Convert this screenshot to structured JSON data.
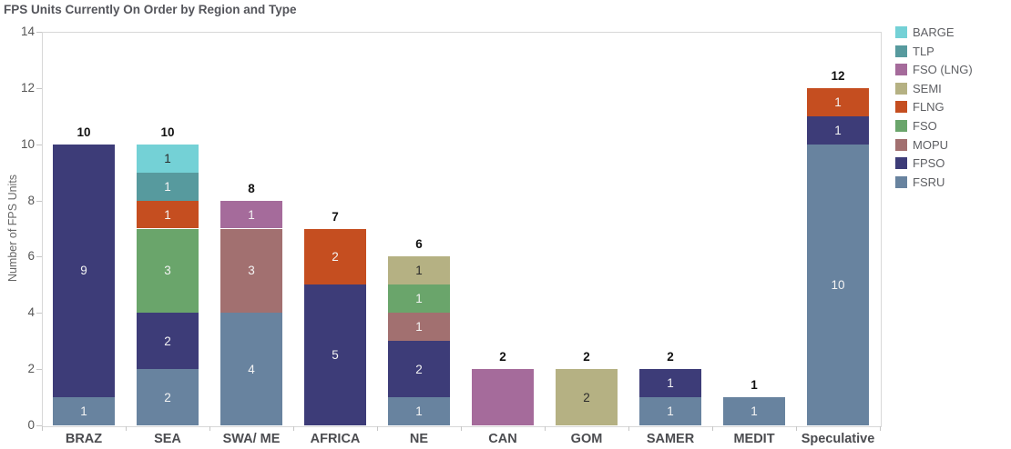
{
  "title": "FPS Units Currently On Order by Region and Type",
  "chart_data": {
    "type": "bar",
    "stacked": true,
    "title": "FPS Units Currently On Order by Region and Type",
    "xlabel": "",
    "ylabel": "Number of FPS Units",
    "ylim": [
      0,
      14
    ],
    "yticks": [
      0,
      2,
      4,
      6,
      8,
      10,
      12,
      14
    ],
    "grid": false,
    "legend_position": "right",
    "legend": [
      {
        "label": "BARGE",
        "color": "#74d1d6"
      },
      {
        "label": "TLP",
        "color": "#579a9e"
      },
      {
        "label": "FSO (LNG)",
        "color": "#a56b9b"
      },
      {
        "label": "SEMI",
        "color": "#b5b183"
      },
      {
        "label": "FLNG",
        "color": "#c54e20"
      },
      {
        "label": "FSO",
        "color": "#6aa56b"
      },
      {
        "label": "MOPU",
        "color": "#a27070"
      },
      {
        "label": "FPSO",
        "color": "#3d3c78"
      },
      {
        "label": "FSRU",
        "color": "#68839f"
      }
    ],
    "categories": [
      "BRAZ",
      "SEA",
      "SWA/ ME",
      "AFRICA",
      "NE",
      "CAN",
      "GOM",
      "SAMER",
      "MEDIT",
      "Speculative"
    ],
    "dark_text_types": [
      "BARGE",
      "SEMI"
    ],
    "bars": [
      {
        "category": "BRAZ",
        "total": 10,
        "segments": [
          {
            "type": "FSRU",
            "value": 1
          },
          {
            "type": "FPSO",
            "value": 9
          }
        ]
      },
      {
        "category": "SEA",
        "total": 10,
        "segments": [
          {
            "type": "FSRU",
            "value": 2
          },
          {
            "type": "FPSO",
            "value": 2
          },
          {
            "type": "FSO",
            "value": 3
          },
          {
            "type": "FLNG",
            "value": 1
          },
          {
            "type": "TLP",
            "value": 1
          },
          {
            "type": "BARGE",
            "value": 1
          }
        ]
      },
      {
        "category": "SWA/ ME",
        "total": 8,
        "segments": [
          {
            "type": "FSRU",
            "value": 4
          },
          {
            "type": "MOPU",
            "value": 3
          },
          {
            "type": "FSO (LNG)",
            "value": 1
          }
        ]
      },
      {
        "category": "AFRICA",
        "total": 7,
        "segments": [
          {
            "type": "FPSO",
            "value": 5
          },
          {
            "type": "FLNG",
            "value": 2
          }
        ]
      },
      {
        "category": "NE",
        "total": 6,
        "segments": [
          {
            "type": "FSRU",
            "value": 1
          },
          {
            "type": "FPSO",
            "value": 2
          },
          {
            "type": "MOPU",
            "value": 1
          },
          {
            "type": "FSO",
            "value": 1
          },
          {
            "type": "SEMI",
            "value": 1
          }
        ]
      },
      {
        "category": "CAN",
        "total": 2,
        "segments": [
          {
            "type": "FSO (LNG)",
            "value": 2,
            "show_label": false
          }
        ]
      },
      {
        "category": "GOM",
        "total": 2,
        "segments": [
          {
            "type": "SEMI",
            "value": 2
          }
        ]
      },
      {
        "category": "SAMER",
        "total": 2,
        "segments": [
          {
            "type": "FSRU",
            "value": 1
          },
          {
            "type": "FPSO",
            "value": 1
          }
        ]
      },
      {
        "category": "MEDIT",
        "total": 1,
        "segments": [
          {
            "type": "FSRU",
            "value": 1
          }
        ]
      },
      {
        "category": "Speculative",
        "total": 12,
        "segments": [
          {
            "type": "FSRU",
            "value": 10
          },
          {
            "type": "FPSO",
            "value": 1
          },
          {
            "type": "FLNG",
            "value": 1
          }
        ]
      }
    ]
  }
}
